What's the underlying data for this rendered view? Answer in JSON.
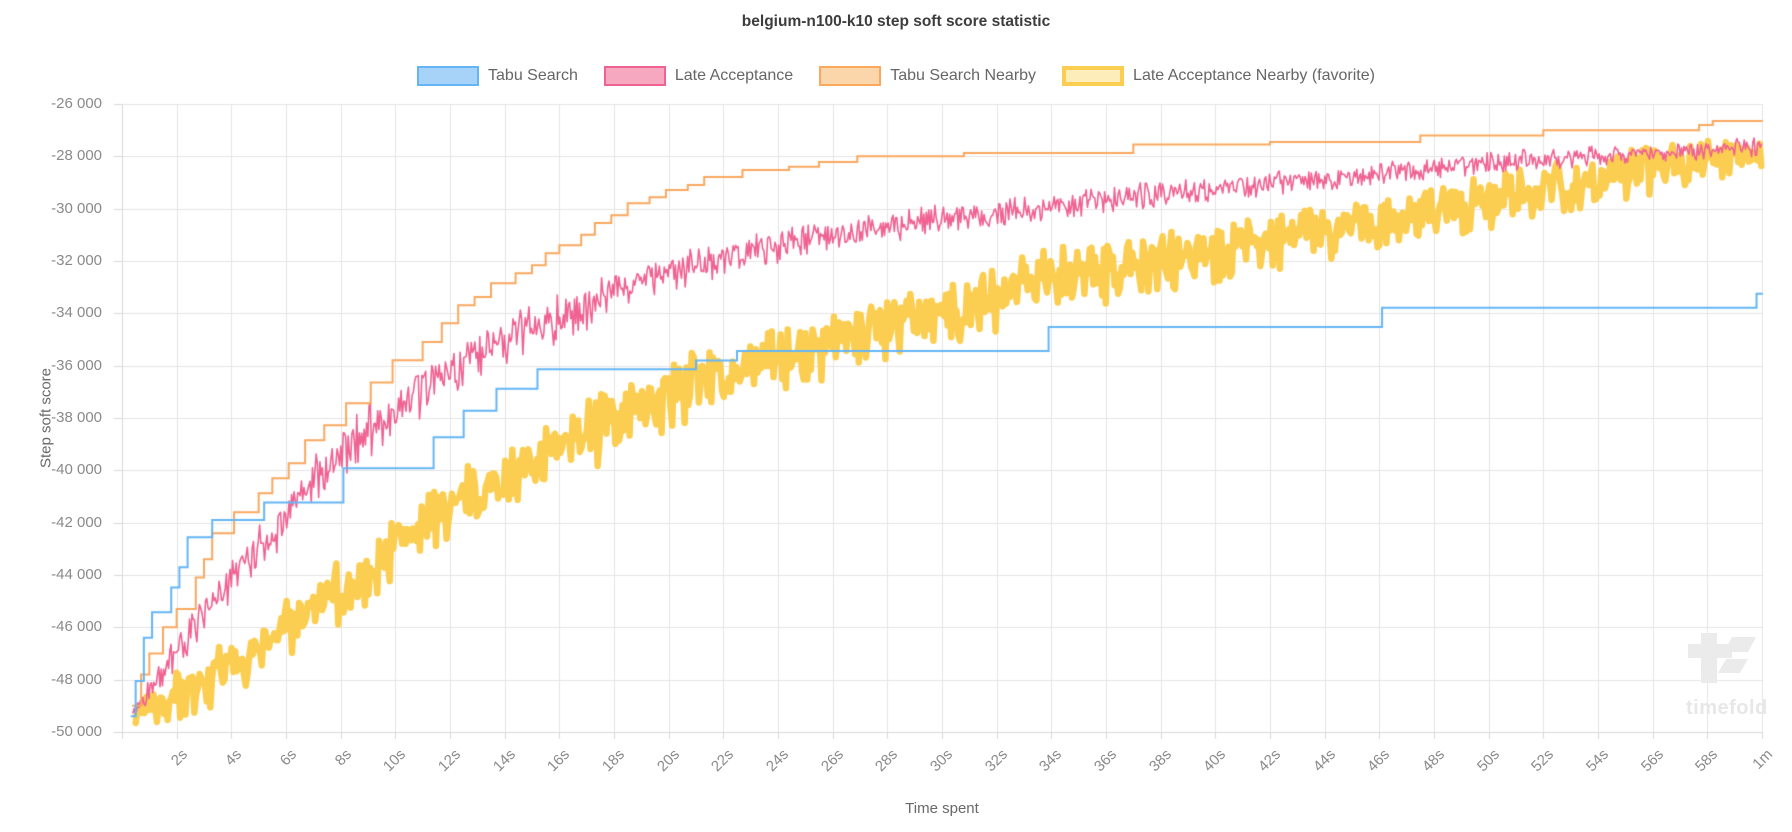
{
  "title": "belgium-n100-k10 step soft score statistic",
  "axes": {
    "x_label": "Time spent",
    "y_label": "Step soft score",
    "x_ticks": [
      "2s",
      "4s",
      "6s",
      "8s",
      "10s",
      "12s",
      "14s",
      "16s",
      "18s",
      "20s",
      "22s",
      "24s",
      "26s",
      "28s",
      "30s",
      "32s",
      "34s",
      "36s",
      "38s",
      "40s",
      "42s",
      "44s",
      "46s",
      "48s",
      "50s",
      "52s",
      "54s",
      "56s",
      "58s",
      "1m"
    ],
    "y_ticks": [
      "-26 000",
      "-28 000",
      "-30 000",
      "-32 000",
      "-34 000",
      "-36 000",
      "-38 000",
      "-40 000",
      "-42 000",
      "-44 000",
      "-46 000",
      "-48 000",
      "-50 000"
    ]
  },
  "watermark": {
    "text": "timefold"
  },
  "chart_data": {
    "type": "line",
    "title": "belgium-n100-k10 step soft score statistic",
    "xlabel": "Time spent",
    "ylabel": "Step soft score",
    "x_unit": "seconds",
    "xlim": [
      0,
      60
    ],
    "ylim": [
      -50000,
      -26000
    ],
    "x_tick_step_seconds": 2,
    "y_tick_step": 2000,
    "grid": true,
    "legend_position": "top",
    "colors": {
      "grid": "#e5e5e5",
      "axis": "#d8d8d8",
      "tick_text": "#8a8a8a",
      "title_text": "#3d3d3d"
    },
    "series": [
      {
        "name": "Tabu Search",
        "color": "#64b5f6",
        "fill": "#a7d3f8",
        "style": "step",
        "line_width": 2,
        "favorite": false,
        "points": [
          [
            0.35,
            -49400
          ],
          [
            0.5,
            -48050
          ],
          [
            0.8,
            -46400
          ],
          [
            1.1,
            -45420
          ],
          [
            1.8,
            -44480
          ],
          [
            2.1,
            -43700
          ],
          [
            2.4,
            -42560
          ],
          [
            3.3,
            -41900
          ],
          [
            5.2,
            -41230
          ],
          [
            8.1,
            -39920
          ],
          [
            11.4,
            -38740
          ],
          [
            12.5,
            -37720
          ],
          [
            13.7,
            -36880
          ],
          [
            15.2,
            -36140
          ],
          [
            21.0,
            -35800
          ],
          [
            22.5,
            -35440
          ],
          [
            33.9,
            -34520
          ],
          [
            46.1,
            -33790
          ],
          [
            59.8,
            -33250
          ],
          [
            60.0,
            -33250
          ]
        ]
      },
      {
        "name": "Late Acceptance",
        "color": "#f06292",
        "fill": "#f7a8c1",
        "style": "noisy",
        "line_width": 1.6,
        "favorite": false,
        "center": [
          [
            0.4,
            -49300
          ],
          [
            1,
            -48400
          ],
          [
            2,
            -46800
          ],
          [
            3,
            -45500
          ],
          [
            4,
            -44100
          ],
          [
            5,
            -42900
          ],
          [
            6,
            -41700
          ],
          [
            7,
            -40400
          ],
          [
            8,
            -39300
          ],
          [
            9,
            -38400
          ],
          [
            10,
            -37600
          ],
          [
            11,
            -36800
          ],
          [
            12,
            -36100
          ],
          [
            13,
            -35500
          ],
          [
            14,
            -35000
          ],
          [
            15,
            -34600
          ],
          [
            16,
            -34100
          ],
          [
            17,
            -33700
          ],
          [
            18,
            -33000
          ],
          [
            19,
            -32700
          ],
          [
            20,
            -32400
          ],
          [
            22,
            -31900
          ],
          [
            24,
            -31400
          ],
          [
            26,
            -31000
          ],
          [
            28,
            -30700
          ],
          [
            30,
            -30300
          ],
          [
            32,
            -30100
          ],
          [
            34,
            -29900
          ],
          [
            36,
            -29600
          ],
          [
            38,
            -29400
          ],
          [
            40,
            -29200
          ],
          [
            42,
            -29000
          ],
          [
            44,
            -28800
          ],
          [
            46,
            -28600
          ],
          [
            48,
            -28400
          ],
          [
            50,
            -28200
          ],
          [
            52,
            -28100
          ],
          [
            54,
            -27950
          ],
          [
            56,
            -27850
          ],
          [
            58,
            -27750
          ],
          [
            60,
            -27600
          ]
        ],
        "amplitude": [
          [
            0.4,
            300
          ],
          [
            2,
            650
          ],
          [
            5,
            900
          ],
          [
            8,
            1000
          ],
          [
            12,
            1000
          ],
          [
            16,
            900
          ],
          [
            20,
            700
          ],
          [
            25,
            600
          ],
          [
            30,
            500
          ],
          [
            40,
            450
          ],
          [
            50,
            400
          ],
          [
            60,
            350
          ]
        ]
      },
      {
        "name": "Tabu Search Nearby",
        "color": "#f9a85e",
        "fill": "#fbd6ab",
        "style": "step",
        "line_width": 2,
        "favorite": false,
        "points": [
          [
            0.4,
            -49000
          ],
          [
            0.7,
            -47800
          ],
          [
            1.0,
            -47000
          ],
          [
            1.5,
            -46000
          ],
          [
            2.0,
            -45300
          ],
          [
            2.7,
            -44100
          ],
          [
            3.0,
            -43400
          ],
          [
            3.3,
            -42400
          ],
          [
            4.1,
            -41600
          ],
          [
            5.0,
            -40880
          ],
          [
            5.5,
            -40300
          ],
          [
            6.1,
            -39730
          ],
          [
            6.7,
            -38850
          ],
          [
            7.4,
            -38280
          ],
          [
            8.2,
            -37440
          ],
          [
            9.1,
            -36640
          ],
          [
            9.9,
            -35790
          ],
          [
            11.0,
            -35100
          ],
          [
            11.7,
            -34380
          ],
          [
            12.3,
            -33690
          ],
          [
            12.9,
            -33380
          ],
          [
            13.5,
            -32850
          ],
          [
            14.4,
            -32470
          ],
          [
            15.0,
            -32160
          ],
          [
            15.5,
            -31700
          ],
          [
            16.0,
            -31400
          ],
          [
            16.8,
            -31000
          ],
          [
            17.3,
            -30550
          ],
          [
            17.9,
            -30250
          ],
          [
            18.5,
            -29790
          ],
          [
            19.3,
            -29560
          ],
          [
            19.9,
            -29290
          ],
          [
            20.7,
            -29100
          ],
          [
            21.3,
            -28790
          ],
          [
            22.7,
            -28520
          ],
          [
            24.4,
            -28400
          ],
          [
            25.5,
            -28220
          ],
          [
            26.9,
            -28000
          ],
          [
            30.8,
            -27870
          ],
          [
            37.0,
            -27550
          ],
          [
            42.0,
            -27450
          ],
          [
            47.5,
            -27200
          ],
          [
            52.0,
            -27000
          ],
          [
            57.7,
            -26800
          ],
          [
            58.2,
            -26650
          ],
          [
            60.0,
            -26650
          ]
        ]
      },
      {
        "name": "Late Acceptance Nearby (favorite)",
        "color": "#fbce51",
        "fill": "#fcedbb",
        "style": "noisy",
        "line_width": 6.5,
        "favorite": true,
        "center": [
          [
            0.5,
            -49200
          ],
          [
            1,
            -49000
          ],
          [
            2,
            -48600
          ],
          [
            3,
            -48300
          ],
          [
            4,
            -47400
          ],
          [
            5,
            -46700
          ],
          [
            6,
            -46000
          ],
          [
            7,
            -45300
          ],
          [
            8,
            -44500
          ],
          [
            9,
            -43700
          ],
          [
            10,
            -42700
          ],
          [
            11,
            -42000
          ],
          [
            12,
            -41400
          ],
          [
            13,
            -40800
          ],
          [
            14,
            -40300
          ],
          [
            15,
            -39800
          ],
          [
            16,
            -39200
          ],
          [
            17,
            -38600
          ],
          [
            18,
            -38000
          ],
          [
            19,
            -37500
          ],
          [
            20,
            -37000
          ],
          [
            22,
            -36300
          ],
          [
            24,
            -35700
          ],
          [
            26,
            -35100
          ],
          [
            28,
            -34500
          ],
          [
            30,
            -34000
          ],
          [
            32,
            -33400
          ],
          [
            34,
            -32500
          ],
          [
            36,
            -32400
          ],
          [
            38,
            -32000
          ],
          [
            40,
            -31600
          ],
          [
            42,
            -31200
          ],
          [
            44,
            -30900
          ],
          [
            46,
            -30400
          ],
          [
            48,
            -30000
          ],
          [
            50,
            -29700
          ],
          [
            52,
            -29200
          ],
          [
            54,
            -28800
          ],
          [
            56,
            -28500
          ],
          [
            58,
            -28200
          ],
          [
            60,
            -27800
          ]
        ],
        "amplitude": [
          [
            0.5,
            400
          ],
          [
            2,
            900
          ],
          [
            4,
            1100
          ],
          [
            8,
            1200
          ],
          [
            12,
            1200
          ],
          [
            16,
            1300
          ],
          [
            20,
            1300
          ],
          [
            25,
            1200
          ],
          [
            30,
            1150
          ],
          [
            35,
            1100
          ],
          [
            40,
            1050
          ],
          [
            45,
            1000
          ],
          [
            50,
            950
          ],
          [
            55,
            900
          ],
          [
            60,
            750
          ]
        ]
      }
    ]
  }
}
